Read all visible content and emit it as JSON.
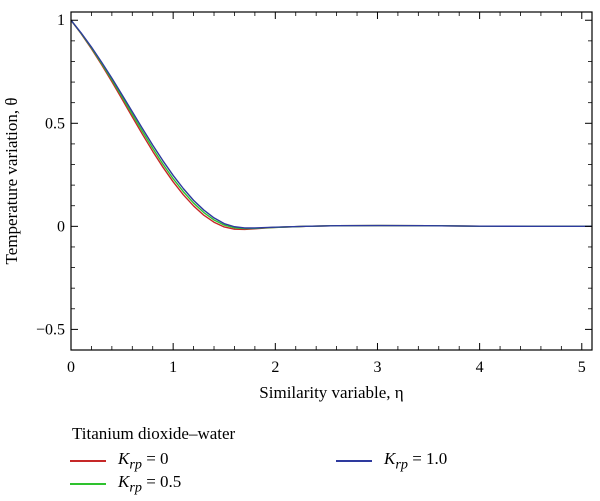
{
  "chart_data": {
    "type": "line",
    "xlabel": "Similarity variable, η",
    "ylabel": "Temperature variation, θ",
    "xlim": [
      0,
      5.1
    ],
    "ylim": [
      -0.6,
      1.04
    ],
    "x_ticks": [
      0,
      1,
      2,
      3,
      4,
      5
    ],
    "y_ticks": [
      1,
      0.5,
      0,
      -0.5
    ],
    "x_tick_labels": [
      "0",
      "1",
      "2",
      "3",
      "4",
      "5"
    ],
    "y_tick_labels": [
      "1",
      "0.5",
      "0",
      "−0.5"
    ],
    "grid": false,
    "legend_title": "Titanium dioxide–water",
    "legend_placement": "bottom",
    "series": [
      {
        "name": "K_rp = 0",
        "label_main": "K",
        "label_sub": "rp",
        "label_value": " = 0",
        "color": "#c62828",
        "x": [
          0,
          0.1,
          0.2,
          0.3,
          0.4,
          0.5,
          0.6,
          0.7,
          0.8,
          0.9,
          1.0,
          1.1,
          1.2,
          1.3,
          1.4,
          1.5,
          1.6,
          1.7,
          1.8,
          1.9,
          2.0,
          2.3,
          2.6,
          3.0,
          3.5,
          4.0,
          4.5,
          5.1
        ],
        "y": [
          1.0,
          0.934,
          0.862,
          0.784,
          0.702,
          0.617,
          0.531,
          0.446,
          0.364,
          0.287,
          0.216,
          0.153,
          0.099,
          0.054,
          0.02,
          -0.003,
          -0.014,
          -0.015,
          -0.012,
          -0.008,
          -0.005,
          0.0,
          0.003,
          0.004,
          0.003,
          0.001,
          0.0,
          0.0
        ]
      },
      {
        "name": "K_rp = 0.5",
        "label_main": "K",
        "label_sub": "rp",
        "label_value": " = 0.5",
        "color": "#2ec22e",
        "x": [
          0,
          0.1,
          0.2,
          0.3,
          0.4,
          0.5,
          0.6,
          0.7,
          0.8,
          0.9,
          1.0,
          1.1,
          1.2,
          1.3,
          1.4,
          1.5,
          1.6,
          1.7,
          1.8,
          1.9,
          2.0,
          2.3,
          2.6,
          3.0,
          3.5,
          4.0,
          4.5,
          5.1
        ],
        "y": [
          1.0,
          0.936,
          0.866,
          0.79,
          0.711,
          0.628,
          0.544,
          0.46,
          0.379,
          0.302,
          0.231,
          0.168,
          0.113,
          0.067,
          0.031,
          0.006,
          -0.007,
          -0.011,
          -0.01,
          -0.007,
          -0.005,
          0.0,
          0.003,
          0.004,
          0.003,
          0.001,
          0.0,
          0.0
        ]
      },
      {
        "name": "K_rp = 1.0",
        "label_main": "K",
        "label_sub": "rp",
        "label_value": " = 1.0",
        "color": "#2e3a9e",
        "x": [
          0,
          0.1,
          0.2,
          0.3,
          0.4,
          0.5,
          0.6,
          0.7,
          0.8,
          0.9,
          1.0,
          1.1,
          1.2,
          1.3,
          1.4,
          1.5,
          1.6,
          1.7,
          1.8,
          1.9,
          2.0,
          2.3,
          2.6,
          3.0,
          3.5,
          4.0,
          4.5,
          5.1
        ],
        "y": [
          1.0,
          0.938,
          0.87,
          0.796,
          0.719,
          0.638,
          0.556,
          0.474,
          0.394,
          0.318,
          0.247,
          0.183,
          0.126,
          0.079,
          0.041,
          0.013,
          -0.002,
          -0.008,
          -0.008,
          -0.006,
          -0.004,
          0.0,
          0.003,
          0.004,
          0.003,
          0.001,
          0.0,
          0.0
        ]
      }
    ]
  }
}
